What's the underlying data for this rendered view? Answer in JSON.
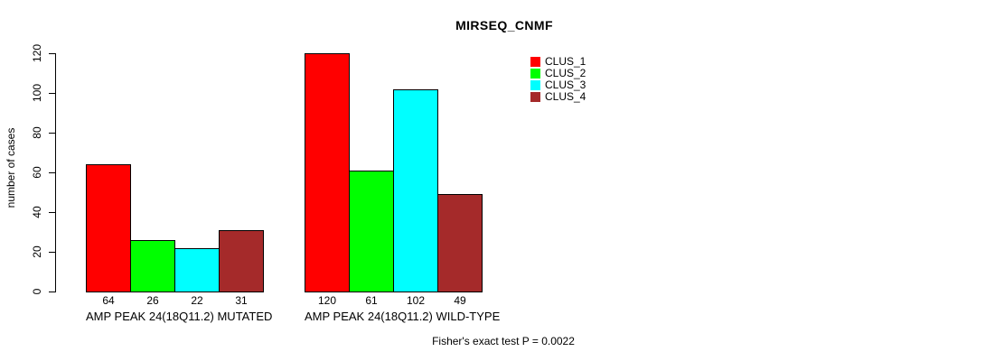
{
  "title": "MIRSEQ_CNMF",
  "footer_note": "Fisher's exact test P = 0.0022",
  "chart_data": {
    "type": "bar",
    "title": "MIRSEQ_CNMF",
    "xlabel": "",
    "ylabel": "number of cases",
    "ylim": [
      0,
      120
    ],
    "yticks": [
      0,
      20,
      40,
      60,
      80,
      100,
      120
    ],
    "grid": false,
    "legend_position": "top-right",
    "bar_border_color": "#000000",
    "categories": [
      "AMP PEAK 24(18Q11.2) MUTATED",
      "AMP PEAK 24(18Q11.2) WILD-TYPE"
    ],
    "series": [
      {
        "name": "CLUS_1",
        "color": "#ff0000",
        "values": [
          64,
          120
        ]
      },
      {
        "name": "CLUS_2",
        "color": "#00ff00",
        "values": [
          26,
          61
        ]
      },
      {
        "name": "CLUS_3",
        "color": "#00ffff",
        "values": [
          22,
          102
        ]
      },
      {
        "name": "CLUS_4",
        "color": "#a52a2a",
        "values": [
          31,
          49
        ]
      }
    ],
    "bar_value_labels_shown": true,
    "annotation": "Fisher's exact test P = 0.0022"
  }
}
